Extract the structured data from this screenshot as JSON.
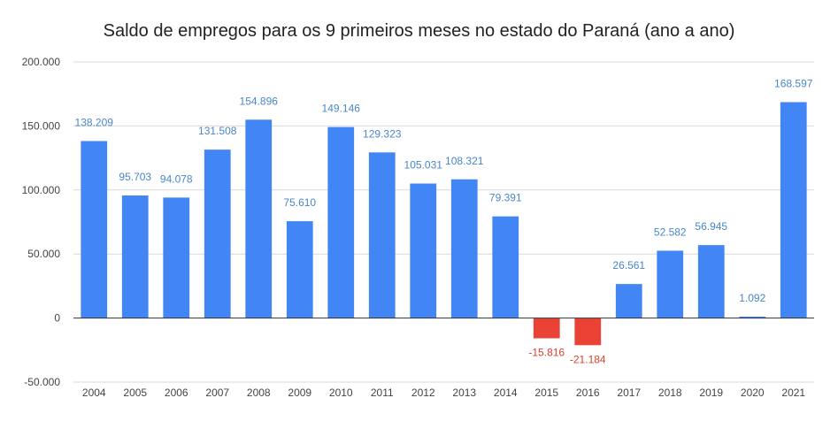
{
  "chart_data": {
    "type": "bar",
    "title": "Saldo de empregos para os 9 primeiros meses no estado do Paraná (ano a ano)",
    "xlabel": "",
    "ylabel": "",
    "categories": [
      "2004",
      "2005",
      "2006",
      "2007",
      "2008",
      "2009",
      "2010",
      "2011",
      "2012",
      "2013",
      "2014",
      "2015",
      "2016",
      "2017",
      "2018",
      "2019",
      "2020",
      "2021"
    ],
    "values": [
      138209,
      95703,
      94078,
      131508,
      154896,
      75610,
      149146,
      129323,
      105031,
      108321,
      79391,
      -15816,
      -21184,
      26561,
      52582,
      56945,
      1092,
      168597
    ],
    "data_labels": [
      "138.209",
      "95.703",
      "94.078",
      "131.508",
      "154.896",
      "75.610",
      "149.146",
      "129.323",
      "105.031",
      "108.321",
      "79.391",
      "-15.816",
      "-21.184",
      "26.561",
      "52.582",
      "56.945",
      "1.092",
      "168.597"
    ],
    "ylim": [
      -50000,
      200000
    ],
    "yticks": [
      -50000,
      0,
      50000,
      100000,
      150000,
      200000
    ],
    "ytick_labels": [
      "-50.000",
      "0",
      "50.000",
      "100.000",
      "150.000",
      "200.000"
    ],
    "grid": true,
    "legend": "none",
    "colors": {
      "positive": "#4285f4",
      "negative": "#ea4335",
      "positive_label": "#4a86c8",
      "negative_label": "#d9412f",
      "grid": "#d9d9d9",
      "baseline": "#333333"
    }
  }
}
